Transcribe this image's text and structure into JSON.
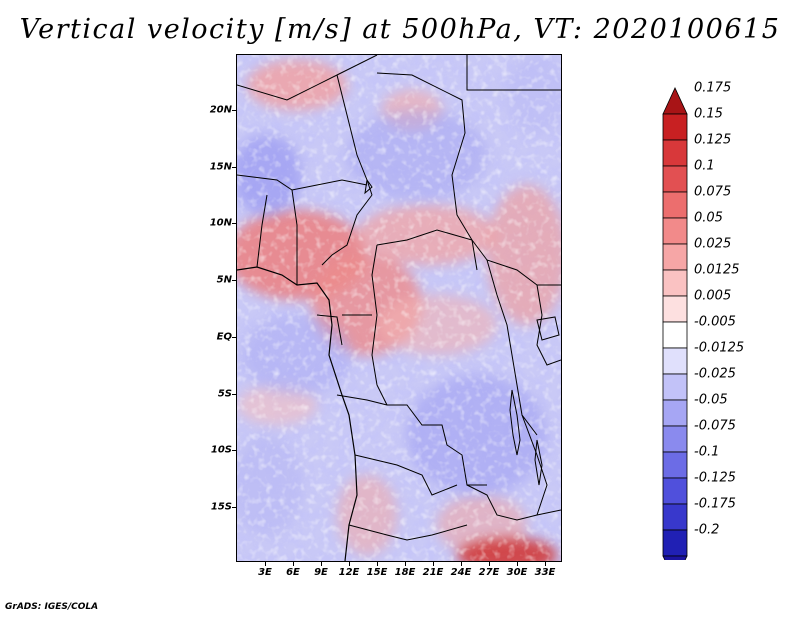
{
  "title": "Vertical velocity [m/s] at 500hPa, VT: 2020100615",
  "footer": "GrADS: IGES/COLA",
  "map": {
    "variable": "Vertical velocity",
    "units": "m/s",
    "level": "500hPa",
    "valid_time": "2020100615",
    "lat_labels": [
      "20N",
      "15N",
      "10N",
      "5N",
      "EQ",
      "5S",
      "10S",
      "15S"
    ],
    "lon_labels": [
      "3E",
      "6E",
      "9E",
      "12E",
      "15E",
      "18E",
      "21E",
      "24E",
      "27E",
      "30E",
      "33E"
    ]
  },
  "colorbar": {
    "levels": [
      "0.175",
      "0.15",
      "0.125",
      "0.1",
      "0.075",
      "0.05",
      "0.025",
      "0.0125",
      "0.005",
      "-0.005",
      "-0.0125",
      "-0.025",
      "-0.05",
      "-0.075",
      "-0.1",
      "-0.125",
      "-0.175",
      "-0.2"
    ],
    "colors": [
      "#a81416",
      "#c82022",
      "#d8383a",
      "#e25052",
      "#ec6e6e",
      "#f28a8a",
      "#f6a6a6",
      "#fac2c2",
      "#fde0e0",
      "#ffffff",
      "#e0e0fc",
      "#c2c2f8",
      "#a6a6f4",
      "#8a8aee",
      "#6c6ce6",
      "#5050dc",
      "#3838cc",
      "#2020b4",
      "#1c14a0"
    ]
  }
}
